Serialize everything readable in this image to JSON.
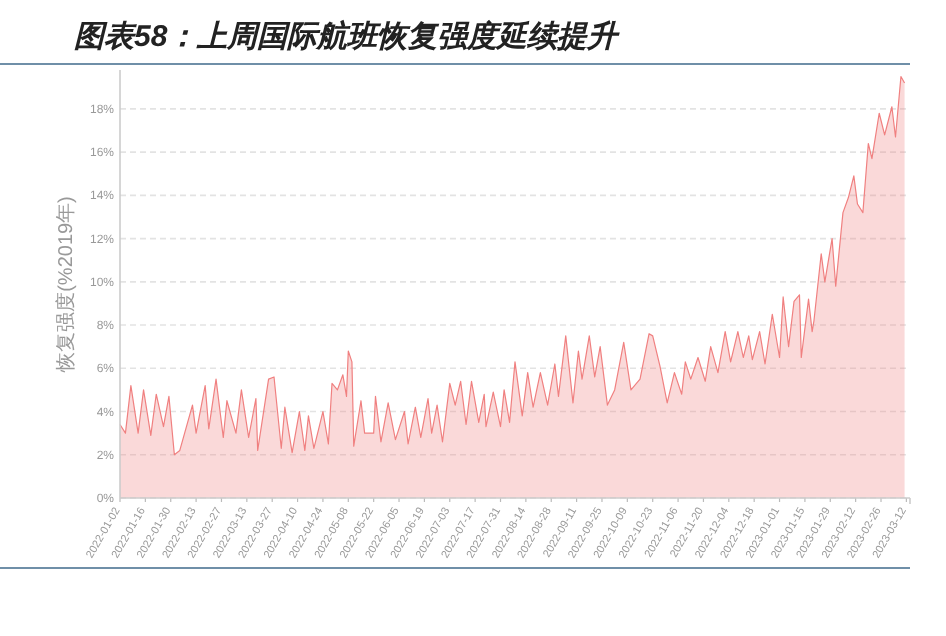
{
  "chart_data": {
    "type": "area",
    "title": "图表58：上周国际航班恢复强度延续提升",
    "ylabel": "恢复强度(%2019年)",
    "x": [
      "2022-01-02",
      "2022-01-05",
      "2022-01-08",
      "2022-01-12",
      "2022-01-15",
      "2022-01-19",
      "2022-01-22",
      "2022-01-26",
      "2022-01-29",
      "2022-02-01",
      "2022-02-04",
      "2022-02-11",
      "2022-02-13",
      "2022-02-18",
      "2022-02-20",
      "2022-02-24",
      "2022-02-28",
      "2022-03-02",
      "2022-03-07",
      "2022-03-10",
      "2022-03-14",
      "2022-03-18",
      "2022-03-19",
      "2022-03-25",
      "2022-03-28",
      "2022-04-01",
      "2022-04-03",
      "2022-04-07",
      "2022-04-11",
      "2022-04-14",
      "2022-04-16",
      "2022-04-19",
      "2022-04-24",
      "2022-04-27",
      "2022-04-29",
      "2022-05-02",
      "2022-05-05",
      "2022-05-07",
      "2022-05-08",
      "2022-05-10",
      "2022-05-11",
      "2022-05-15",
      "2022-05-17",
      "2022-05-22",
      "2022-05-23",
      "2022-05-26",
      "2022-05-30",
      "2022-06-03",
      "2022-06-08",
      "2022-06-10",
      "2022-06-14",
      "2022-06-17",
      "2022-06-21",
      "2022-06-23",
      "2022-06-26",
      "2022-06-29",
      "2022-07-03",
      "2022-07-06",
      "2022-07-09",
      "2022-07-12",
      "2022-07-15",
      "2022-07-19",
      "2022-07-22",
      "2022-07-23",
      "2022-07-27",
      "2022-07-31",
      "2022-08-02",
      "2022-08-05",
      "2022-08-08",
      "2022-08-12",
      "2022-08-15",
      "2022-08-18",
      "2022-08-22",
      "2022-08-26",
      "2022-08-30",
      "2022-09-01",
      "2022-09-05",
      "2022-09-09",
      "2022-09-12",
      "2022-09-14",
      "2022-09-18",
      "2022-09-21",
      "2022-09-24",
      "2022-09-28",
      "2022-10-02",
      "2022-10-07",
      "2022-10-11",
      "2022-10-16",
      "2022-10-21",
      "2022-10-23",
      "2022-10-27",
      "2022-10-31",
      "2022-11-04",
      "2022-11-08",
      "2022-11-10",
      "2022-11-13",
      "2022-11-17",
      "2022-11-21",
      "2022-11-24",
      "2022-11-28",
      "2022-12-02",
      "2022-12-05",
      "2022-12-09",
      "2022-12-12",
      "2022-12-15",
      "2022-12-17",
      "2022-12-21",
      "2022-12-24",
      "2022-12-28",
      "2023-01-01",
      "2023-01-03",
      "2023-01-06",
      "2023-01-09",
      "2023-01-12",
      "2023-01-13",
      "2023-01-17",
      "2023-01-19",
      "2023-01-20",
      "2023-01-24",
      "2023-01-26",
      "2023-01-30",
      "2023-02-01",
      "2023-02-05",
      "2023-02-08",
      "2023-02-11",
      "2023-02-13",
      "2023-02-16",
      "2023-02-19",
      "2023-02-21",
      "2023-02-25",
      "2023-02-28",
      "2023-03-04",
      "2023-03-06",
      "2023-03-09",
      "2023-03-11"
    ],
    "series": [
      {
        "color": "#f08080",
        "values": [
          3.4,
          3.0,
          5.2,
          3.0,
          5.0,
          2.9,
          4.8,
          3.3,
          4.7,
          2.0,
          2.2,
          4.3,
          3.0,
          5.2,
          3.2,
          5.5,
          2.8,
          4.5,
          3.0,
          5.0,
          2.8,
          4.6,
          2.2,
          5.5,
          5.6,
          2.3,
          4.2,
          2.1,
          4.0,
          2.2,
          3.8,
          2.3,
          4.0,
          2.5,
          5.3,
          5.0,
          5.7,
          4.7,
          6.8,
          6.3,
          2.4,
          4.5,
          3.0,
          3.0,
          4.7,
          2.6,
          4.4,
          2.7,
          4.0,
          2.5,
          4.2,
          2.8,
          4.6,
          3.0,
          4.3,
          2.6,
          5.3,
          4.3,
          5.4,
          3.4,
          5.4,
          3.5,
          4.8,
          3.3,
          4.9,
          3.3,
          5.0,
          3.5,
          6.3,
          3.8,
          5.8,
          4.2,
          5.8,
          4.3,
          6.2,
          4.7,
          7.5,
          4.4,
          6.8,
          5.5,
          7.5,
          5.6,
          7.0,
          4.3,
          5.0,
          7.2,
          5.0,
          5.5,
          7.6,
          7.5,
          6.1,
          4.4,
          5.8,
          4.8,
          6.3,
          5.5,
          6.5,
          5.4,
          7.0,
          5.8,
          7.7,
          6.3,
          7.7,
          6.5,
          7.5,
          6.4,
          7.7,
          6.2,
          8.5,
          6.5,
          9.3,
          7.0,
          9.1,
          9.4,
          6.5,
          9.2,
          7.7,
          8.2,
          11.3,
          10.0,
          12.0,
          9.8,
          13.2,
          13.9,
          14.9,
          13.6,
          13.2,
          16.4,
          15.7,
          17.8,
          16.8,
          18.1,
          16.7,
          19.5,
          19.2
        ]
      }
    ],
    "xlim": [
      "2022-01-02",
      "2023-03-14"
    ],
    "xticks": [
      "2022-01-02",
      "2022-01-16",
      "2022-01-30",
      "2022-02-13",
      "2022-02-27",
      "2022-03-13",
      "2022-03-27",
      "2022-04-10",
      "2022-04-24",
      "2022-05-08",
      "2022-05-22",
      "2022-06-05",
      "2022-06-19",
      "2022-07-03",
      "2022-07-17",
      "2022-07-31",
      "2022-08-14",
      "2022-08-28",
      "2022-09-11",
      "2022-09-25",
      "2022-10-09",
      "2022-10-23",
      "2022-11-06",
      "2022-11-20",
      "2022-12-04",
      "2022-12-18",
      "2023-01-01",
      "2023-01-15",
      "2023-01-29",
      "2023-02-12",
      "2023-02-26",
      "2023-03-12"
    ],
    "ylim": [
      0,
      19.8
    ],
    "yticks": [
      {
        "value": 0,
        "label": "0%"
      },
      {
        "value": 2,
        "label": "2%"
      },
      {
        "value": 4,
        "label": "4%"
      },
      {
        "value": 6,
        "label": "6%"
      },
      {
        "value": 8,
        "label": "8%"
      },
      {
        "value": 10,
        "label": "10%"
      },
      {
        "value": 12,
        "label": "12%"
      },
      {
        "value": 14,
        "label": "14%"
      },
      {
        "value": 16,
        "label": "16%"
      },
      {
        "value": 18,
        "label": "18%"
      }
    ],
    "grid": "y"
  }
}
